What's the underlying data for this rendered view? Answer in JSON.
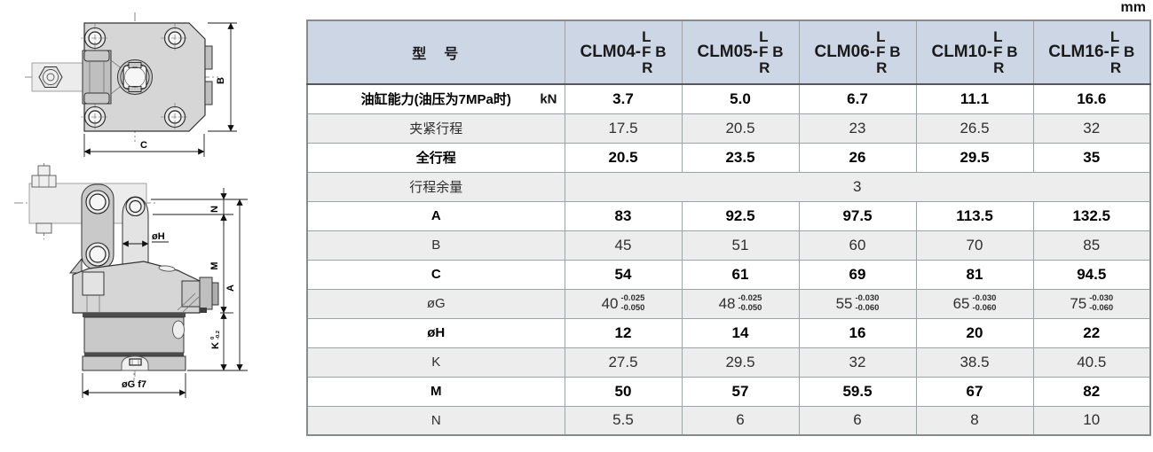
{
  "unit_label": "mm",
  "drawings": {
    "top_view": {
      "dim_b": "B",
      "dim_c": "C"
    },
    "side_view": {
      "dim_n": "N",
      "dim_m": "M",
      "dim_a": "A",
      "dim_k": "K",
      "dim_k_tol_upper": "0",
      "dim_k_tol_lower": "-0.2",
      "dim_h": "øH",
      "dim_g": "øG f7"
    }
  },
  "table": {
    "header": {
      "label": "型　号",
      "models": [
        {
          "prefix": "CLM04-",
          "suffix_top": "L",
          "suffix_mid": "F B",
          "suffix_bottom": "R"
        },
        {
          "prefix": "CLM05-",
          "suffix_top": "L",
          "suffix_mid": "F B",
          "suffix_bottom": "R"
        },
        {
          "prefix": "CLM06-",
          "suffix_top": "L",
          "suffix_mid": "F B",
          "suffix_bottom": "R"
        },
        {
          "prefix": "CLM10-",
          "suffix_top": "L",
          "suffix_mid": "F B",
          "suffix_bottom": "R"
        },
        {
          "prefix": "CLM16-",
          "suffix_top": "L",
          "suffix_mid": "F B",
          "suffix_bottom": "R"
        }
      ]
    },
    "rows": [
      {
        "label": "油缸能力(油压为7MPa时)",
        "unit": "kN",
        "bold": true,
        "values": [
          "3.7",
          "5.0",
          "6.7",
          "11.1",
          "16.6"
        ]
      },
      {
        "label": "夹紧行程",
        "bold": false,
        "values": [
          "17.5",
          "20.5",
          "23",
          "26.5",
          "32"
        ]
      },
      {
        "label": "全行程",
        "bold": true,
        "values": [
          "20.5",
          "23.5",
          "26",
          "29.5",
          "35"
        ]
      },
      {
        "label": "行程余量",
        "bold": false,
        "merged_value": "3"
      },
      {
        "label": "A",
        "bold": true,
        "values": [
          "83",
          "92.5",
          "97.5",
          "113.5",
          "132.5"
        ]
      },
      {
        "label": "B",
        "bold": false,
        "values": [
          "45",
          "51",
          "60",
          "70",
          "85"
        ]
      },
      {
        "label": "C",
        "bold": true,
        "values": [
          "54",
          "61",
          "69",
          "81",
          "94.5"
        ]
      },
      {
        "label": "øG",
        "bold": false,
        "values": [
          {
            "main": "40",
            "tol_upper": "-0.025",
            "tol_lower": "-0.050"
          },
          {
            "main": "48",
            "tol_upper": "-0.025",
            "tol_lower": "-0.050"
          },
          {
            "main": "55",
            "tol_upper": "-0.030",
            "tol_lower": "-0.060"
          },
          {
            "main": "65",
            "tol_upper": "-0.030",
            "tol_lower": "-0.060"
          },
          {
            "main": "75",
            "tol_upper": "-0.030",
            "tol_lower": "-0.060"
          }
        ]
      },
      {
        "label": "øH",
        "bold": true,
        "values": [
          "12",
          "14",
          "16",
          "20",
          "22"
        ]
      },
      {
        "label": "K",
        "bold": false,
        "values": [
          "27.5",
          "29.5",
          "32",
          "38.5",
          "40.5"
        ]
      },
      {
        "label": "M",
        "bold": true,
        "values": [
          "50",
          "57",
          "59.5",
          "67",
          "82"
        ]
      },
      {
        "label": "N",
        "bold": false,
        "values": [
          "5.5",
          "6",
          "6",
          "8",
          "10"
        ]
      }
    ]
  }
}
